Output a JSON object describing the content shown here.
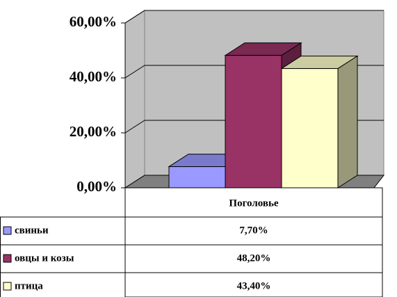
{
  "chart_data": {
    "type": "bar3d",
    "categories": [
      "Поголовье"
    ],
    "series": [
      {
        "name": "свиньи",
        "color": "#9999ff",
        "values": [
          7.7
        ],
        "value_labels": [
          "7,70%"
        ]
      },
      {
        "name": "овцы и козы",
        "color": "#993366",
        "values": [
          48.2
        ],
        "value_labels": [
          "48,20%"
        ]
      },
      {
        "name": "птица",
        "color": "#ffffcc",
        "values": [
          43.4
        ],
        "value_labels": [
          "43,40%"
        ]
      }
    ],
    "ylim": [
      0,
      60
    ],
    "yticks": [
      {
        "value": 0,
        "label": "0,00%"
      },
      {
        "value": 20,
        "label": "20,00%"
      },
      {
        "value": 40,
        "label": "40,00%"
      },
      {
        "value": 60,
        "label": "60,00%"
      }
    ],
    "grid": true,
    "data_table": true
  }
}
